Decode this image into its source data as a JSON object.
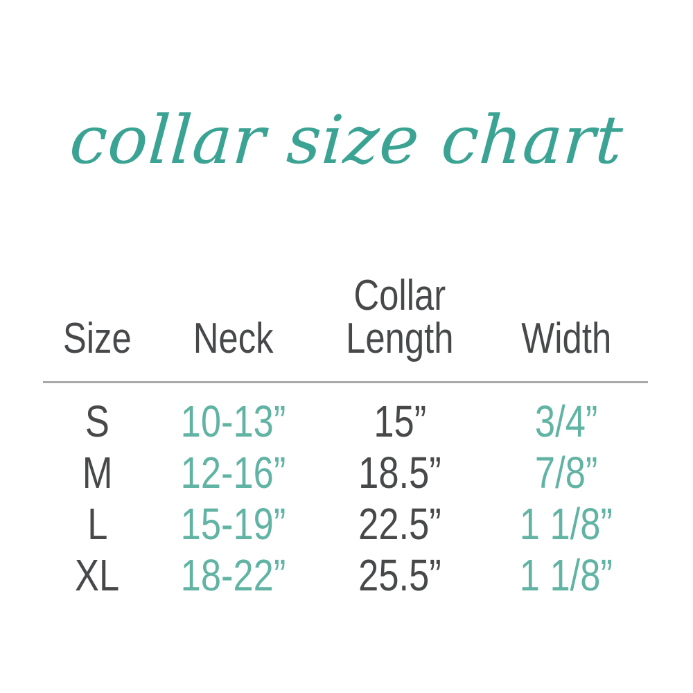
{
  "chart_data": {
    "type": "table",
    "title": "collar size chart",
    "columns": [
      "Size",
      "Neck",
      "Collar\nLength",
      "Width"
    ],
    "rows": [
      [
        "S",
        "10-13”",
        "15”",
        "3/4”"
      ],
      [
        "M",
        "12-16”",
        "18.5”",
        "7/8”"
      ],
      [
        "L",
        "15-19”",
        "22.5”",
        "1 1/8”"
      ],
      [
        "XL",
        "18-22”",
        "25.5”",
        "1 1/8”"
      ]
    ]
  },
  "colors": {
    "title_teal": "#3ba393",
    "value_teal": "#61b3a3",
    "text_dark": "#47484a",
    "divider_gray": "#a9a9a9",
    "background": "#ffffff"
  }
}
